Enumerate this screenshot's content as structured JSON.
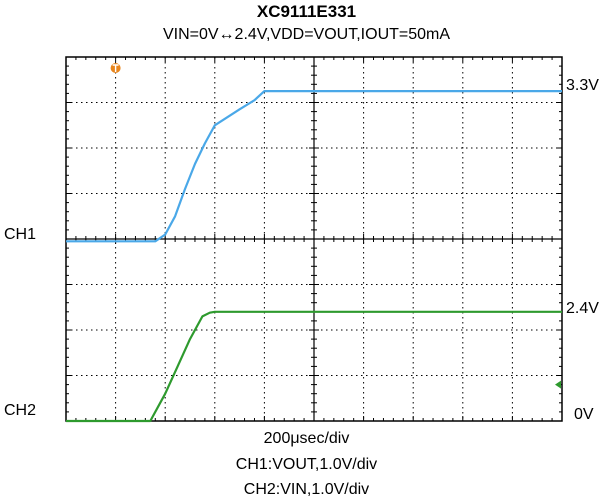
{
  "title": "XC9111E331",
  "subtitle": "VIN=0V↔2.4V,VDD=VOUT,IOUT=50mA",
  "labels": {
    "ch1": "CH1",
    "ch2": "CH2",
    "ch1_level": "3.3V",
    "ch2_level": "2.4V",
    "zero_level": "0V"
  },
  "footer": {
    "timebase": "200μsec/div",
    "ch1_scale": "CH1:VOUT,1.0V/div",
    "ch2_scale": "CH2:VIN,1.0V/div"
  },
  "colors": {
    "ch1": "#4aa8e8",
    "ch2": "#2e9a2e",
    "trigger": "#e8861e",
    "grid": "#000000"
  },
  "chart_data": {
    "type": "line",
    "title": "XC9111E331",
    "subtitle": "VIN=0V↔2.4V,VDD=VOUT,IOUT=50mA",
    "xlabel": "200μsec/div",
    "x_units": "μsec",
    "xlim": [
      0,
      2000
    ],
    "grid": true,
    "divisions": {
      "x": 10,
      "y": 8
    },
    "series": [
      {
        "name": "CH1:VOUT,1.0V/div",
        "color": "#4aa8e8",
        "volts_per_div": 1.0,
        "ground_label": "CH1",
        "level_label": "3.3V",
        "x": [
          0,
          100,
          200,
          360,
          400,
          440,
          480,
          520,
          560,
          600,
          700,
          760,
          800,
          1000,
          1500,
          2000
        ],
        "y": [
          0,
          0,
          0,
          0,
          0.15,
          0.55,
          1.15,
          1.7,
          2.15,
          2.55,
          2.9,
          3.1,
          3.3,
          3.3,
          3.3,
          3.3
        ]
      },
      {
        "name": "CH2:VIN,1.0V/div",
        "color": "#2e9a2e",
        "volts_per_div": 1.0,
        "ground_label": "CH2",
        "level_label": "2.4V",
        "zero_label": "0V",
        "x": [
          0,
          200,
          340,
          400,
          450,
          500,
          550,
          580,
          600,
          1000,
          1500,
          2000
        ],
        "y": [
          0,
          0,
          0,
          0.6,
          1.2,
          1.8,
          2.3,
          2.38,
          2.4,
          2.4,
          2.4,
          2.4
        ]
      }
    ]
  }
}
